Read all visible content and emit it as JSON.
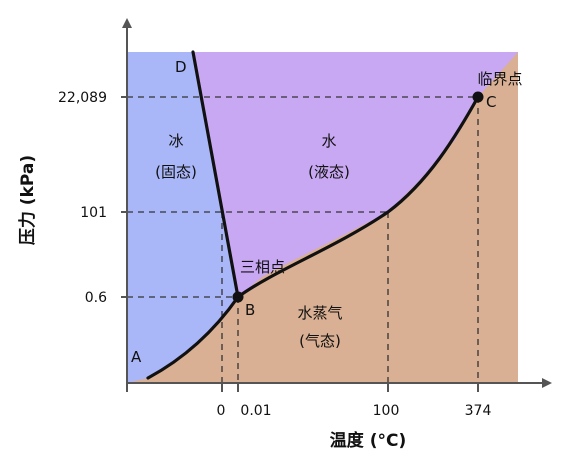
{
  "diagram": {
    "axes": {
      "x_label": "温度 (°C)",
      "y_label": "压力 (kPa)",
      "x_ticks": [
        "0",
        "0.01",
        "100",
        "374"
      ],
      "y_ticks": [
        "22,089",
        "101",
        "0.6"
      ]
    },
    "regions": {
      "solid": {
        "name": "冰",
        "state": "(固态)",
        "color": "#A9B6F7"
      },
      "liquid": {
        "name": "水",
        "state": "(液态)",
        "color": "#C8A8F2"
      },
      "gas": {
        "name": "水蒸气",
        "state": "(气态)",
        "color": "#D9B093"
      }
    },
    "points": {
      "A": {
        "letter": "A"
      },
      "B": {
        "letter": "B",
        "name": "三相点"
      },
      "C": {
        "letter": "C",
        "name": "临界点"
      },
      "D": {
        "letter": "D"
      }
    },
    "colors": {
      "curve": "#111111",
      "axis": "#555555",
      "guide": "#333333"
    }
  }
}
